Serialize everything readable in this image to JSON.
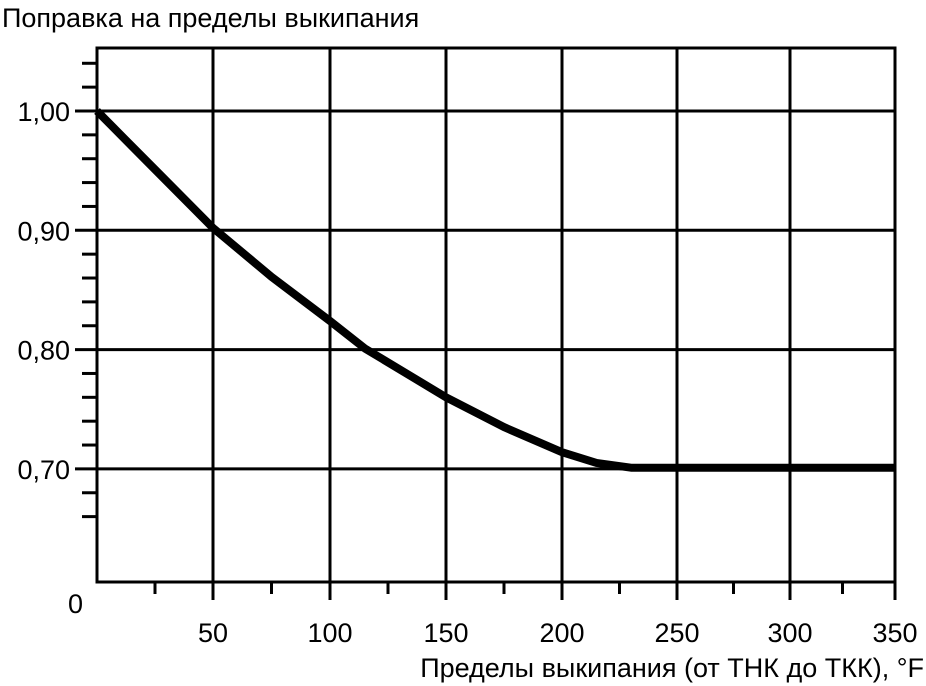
{
  "chart_data": {
    "type": "line",
    "title": "Поправка на пределы выкипания",
    "xlabel": "Пределы выкипания (от ТНК до ТКК), °F",
    "ylabel": "",
    "xlim": [
      0,
      350
    ],
    "ylim": [
      0.65,
      1.05
    ],
    "y_origin_label": "0",
    "x_ticks": [
      50,
      100,
      150,
      200,
      250,
      300,
      350
    ],
    "x_tick_labels": [
      "50",
      "100",
      "150",
      "200",
      "250",
      "300",
      "350"
    ],
    "y_ticks": [
      1.0,
      0.9,
      0.8,
      0.7
    ],
    "y_tick_labels": [
      "1,00",
      "0,90",
      "0,80",
      "0,70"
    ],
    "grid": true,
    "line_color": "#000000",
    "series": [
      {
        "x": [
          0,
          25,
          50,
          75,
          100,
          115,
          150,
          175,
          200,
          215,
          230,
          260,
          300,
          350
        ],
        "y": [
          1.0,
          0.951,
          0.902,
          0.861,
          0.824,
          0.801,
          0.76,
          0.735,
          0.714,
          0.705,
          0.701,
          0.701,
          0.701,
          0.701
        ]
      }
    ]
  }
}
